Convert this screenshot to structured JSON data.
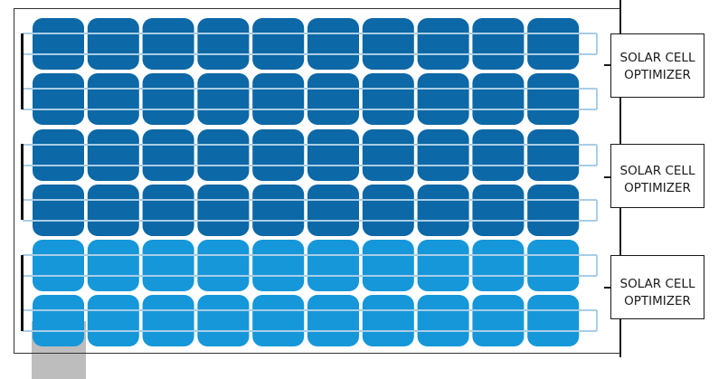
{
  "optimizers": [
    {
      "line1": "SOLAR CELL",
      "line2": "OPTIMIZER"
    },
    {
      "line1": "SOLAR CELL",
      "line2": "OPTIMIZER"
    },
    {
      "line1": "SOLAR CELL",
      "line2": "OPTIMIZER"
    }
  ],
  "panel": {
    "rows": 6,
    "columns": 10,
    "row_colors": [
      "#0c68a6",
      "#0c68a6",
      "#0c68a6",
      "#0c68a6",
      "#1597d9",
      "#1597d9"
    ],
    "ribbon_color": "#a9cde6",
    "wire_color": "#1a1a1a",
    "frame_color": "#333333",
    "junction_box_color": "#bdbdbd"
  }
}
